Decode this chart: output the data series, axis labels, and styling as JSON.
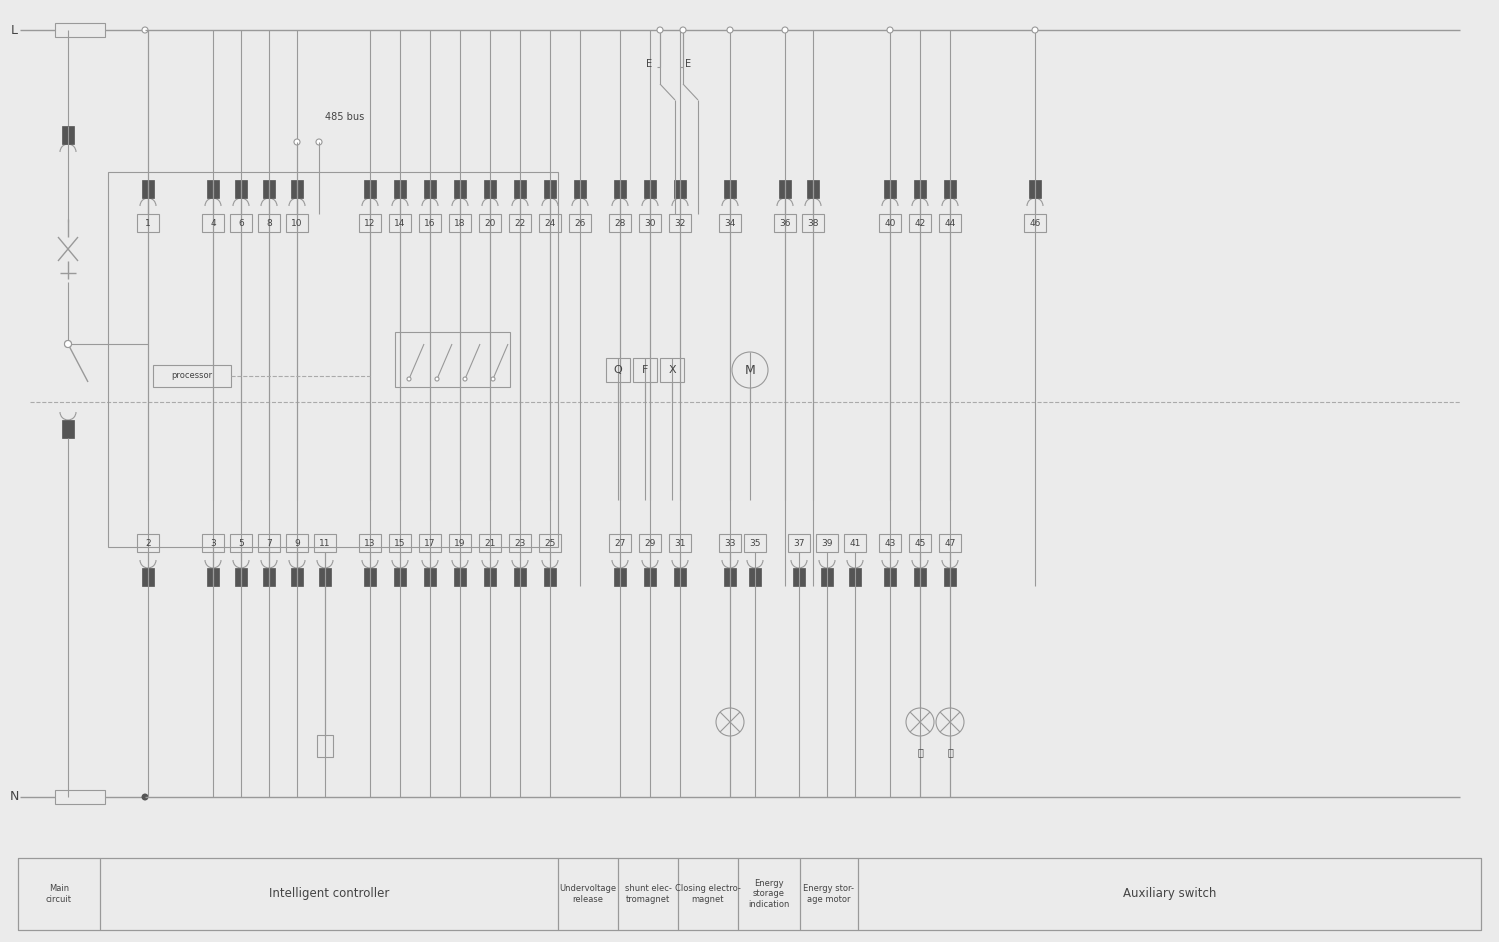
{
  "bg_color": "#ebebeb",
  "line_color": "#999999",
  "dark_color": "#555555",
  "text_color": "#444444",
  "figsize": [
    14.99,
    9.42
  ],
  "footer_labels": [
    "Main\ncircuit",
    "Intelligent controller",
    "Undervoltage\nrelease",
    "shunt elec-\ntromagnet",
    "Closing electro-\nmagnet",
    "Energy\nstorage\nindication",
    "Energy stor-\nage motor",
    "Auxiliary switch"
  ],
  "top_nums": [
    1,
    4,
    6,
    8,
    10,
    12,
    14,
    16,
    18,
    20,
    22,
    24,
    26,
    28,
    30,
    32,
    34,
    36,
    38,
    40,
    42,
    44,
    46
  ],
  "bot_nums": [
    2,
    3,
    5,
    7,
    9,
    11,
    13,
    15,
    17,
    19,
    21,
    23,
    25,
    27,
    29,
    31,
    33,
    35,
    37,
    39,
    41,
    43,
    45,
    47
  ]
}
